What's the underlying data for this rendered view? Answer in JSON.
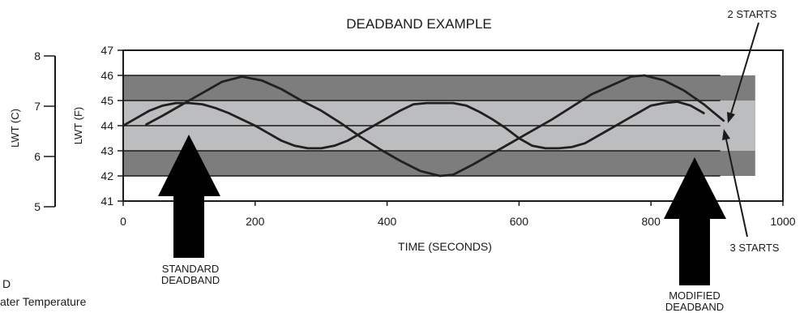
{
  "chart_data": {
    "type": "line",
    "title": "DEADBAND EXAMPLE",
    "xlabel": "TIME (SECONDS)",
    "ylabel": "LWT (F)",
    "ylabel2": "LWT (C)",
    "xlim": [
      0,
      1000
    ],
    "ylim": [
      41,
      47
    ],
    "y2lim": [
      5,
      8
    ],
    "x_ticks": [
      "0",
      "200",
      "400",
      "600",
      "800",
      "1000"
    ],
    "y_ticks": [
      "41",
      "42",
      "43",
      "44",
      "45",
      "46",
      "47"
    ],
    "y2_ticks": [
      "5",
      "6",
      "7",
      "8"
    ],
    "bands": [
      {
        "from": 42,
        "to": 46,
        "color": "#7d7d7e"
      },
      {
        "from": 43,
        "to": 45,
        "color": "#bcbdbf"
      }
    ],
    "setpoint_lines": [
      42,
      43,
      44,
      45,
      46
    ],
    "series": [
      {
        "x": [
          0,
          20,
          40,
          60,
          80,
          100,
          120,
          140,
          160,
          180,
          200,
          220,
          240,
          260,
          280,
          300,
          320,
          340,
          360,
          380,
          400,
          420,
          440,
          460,
          480,
          500,
          520,
          540,
          560,
          580,
          600,
          620,
          640,
          660,
          680,
          700,
          720,
          740,
          760,
          780,
          800,
          820,
          840,
          860,
          880
        ],
        "y": [
          44.0,
          44.3,
          44.6,
          44.8,
          44.9,
          44.9,
          44.85,
          44.7,
          44.5,
          44.25,
          44.0,
          43.7,
          43.4,
          43.2,
          43.1,
          43.1,
          43.2,
          43.4,
          43.7,
          44.0,
          44.3,
          44.6,
          44.85,
          44.9,
          44.9,
          44.9,
          44.8,
          44.55,
          44.25,
          43.9,
          43.5,
          43.2,
          43.1,
          43.1,
          43.15,
          43.3,
          43.6,
          43.9,
          44.2,
          44.5,
          44.8,
          44.9,
          44.95,
          44.8,
          44.5
        ]
      },
      {
        "x": [
          35,
          60,
          90,
          120,
          150,
          180,
          210,
          240,
          270,
          300,
          330,
          360,
          390,
          420,
          450,
          480,
          500,
          530,
          560,
          590,
          620,
          650,
          680,
          710,
          740,
          770,
          790,
          820,
          850,
          880,
          910
        ],
        "y": [
          44.05,
          44.4,
          44.85,
          45.3,
          45.75,
          45.95,
          45.8,
          45.45,
          45.0,
          44.6,
          44.1,
          43.55,
          43.05,
          42.6,
          42.2,
          42.0,
          42.05,
          42.45,
          42.9,
          43.35,
          43.8,
          44.25,
          44.75,
          45.25,
          45.6,
          45.95,
          46.0,
          45.8,
          45.4,
          44.85,
          44.2
        ]
      }
    ],
    "annotations": {
      "two_starts": "2 STARTS",
      "three_starts": "3 STARTS",
      "standard_line1": "STANDARD",
      "standard_line2": "DEADBAND",
      "modified_line1": "MODIFIED",
      "modified_line2": "DEADBAND"
    },
    "legend": false,
    "grid": false
  },
  "legend_fragments": {
    "line1": "D",
    "line2": "ater Temperature"
  }
}
